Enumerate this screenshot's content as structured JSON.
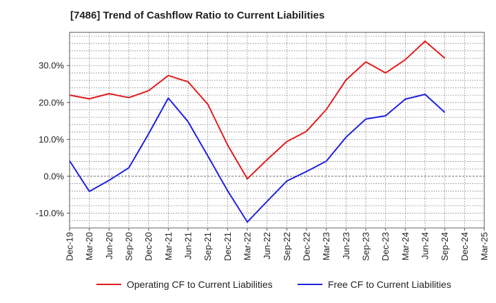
{
  "chart_data": {
    "type": "line",
    "title": "[7486]  Trend of Cashflow Ratio to Current Liabilities",
    "x": [
      "Dec-19",
      "Mar-20",
      "Jun-20",
      "Sep-20",
      "Dec-20",
      "Mar-21",
      "Jun-21",
      "Sep-21",
      "Dec-21",
      "Mar-22",
      "Jun-22",
      "Sep-22",
      "Dec-22",
      "Mar-23",
      "Jun-23",
      "Sep-23",
      "Dec-23",
      "Mar-24",
      "Jun-24",
      "Sep-24",
      "Dec-24",
      "Mar-25"
    ],
    "ylim": [
      -14,
      39
    ],
    "yticks": [
      -10,
      0,
      10,
      20,
      30
    ],
    "ytick_labels": [
      "-10.0%",
      "0.0%",
      "10.0%",
      "20.0%",
      "30.0%"
    ],
    "grid": true,
    "legend_position": "bottom",
    "series": [
      {
        "name": "Operating CF to Current Liabilities",
        "color": "#e41a1c",
        "values": [
          22.0,
          21.0,
          22.4,
          21.3,
          23.2,
          27.3,
          25.6,
          19.5,
          8.5,
          -0.7,
          4.5,
          9.4,
          12.2,
          18.1,
          26.1,
          31.0,
          28.0,
          31.6,
          36.6,
          32.0,
          null,
          null
        ]
      },
      {
        "name": "Free CF to Current Liabilities",
        "color": "#1f1fe0",
        "values": [
          4.2,
          -4.1,
          -1.1,
          2.3,
          11.5,
          21.2,
          14.8,
          5.5,
          -3.9,
          -12.4,
          -6.8,
          -1.3,
          1.3,
          4.1,
          10.6,
          15.5,
          16.4,
          20.9,
          22.2,
          17.3,
          null,
          null
        ]
      }
    ]
  }
}
